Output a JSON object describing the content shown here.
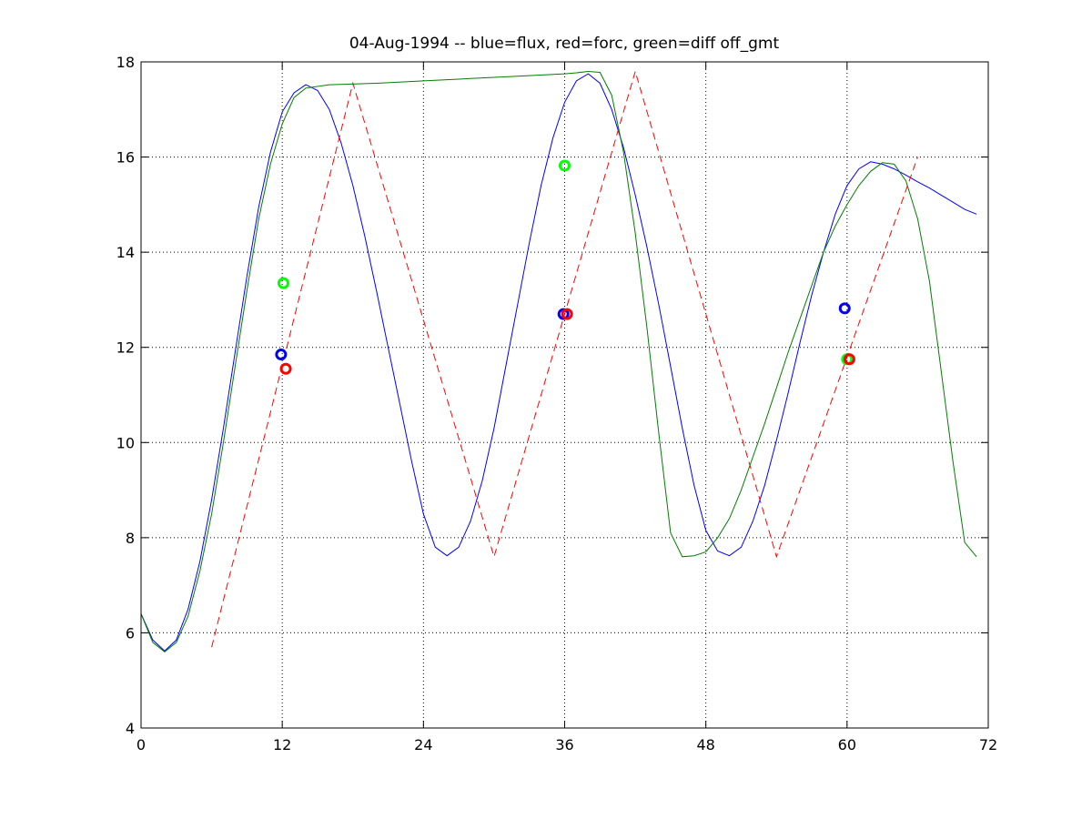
{
  "chart_data": {
    "type": "line",
    "title": "04-Aug-1994 -- blue=flux, red=forc, green=diff off_gmt",
    "xlabel": "",
    "ylabel": "",
    "xlim": [
      0,
      72
    ],
    "ylim": [
      4,
      18
    ],
    "xticks": [
      0,
      12,
      24,
      36,
      48,
      60,
      72
    ],
    "yticks": [
      4,
      6,
      8,
      10,
      12,
      14,
      16,
      18
    ],
    "grid": true,
    "colors": {
      "blue": "#0000ff",
      "red": "#ff0000",
      "green": "#007f00",
      "green_marker": "#00ff00"
    },
    "series": [
      {
        "color": "blue",
        "style": "solid",
        "x": [
          0,
          1,
          2,
          3,
          4,
          5,
          6,
          7,
          8,
          9,
          10,
          11,
          12,
          13,
          14,
          15,
          16,
          17,
          18,
          19,
          20,
          21,
          22,
          23,
          24,
          25,
          26,
          27,
          28,
          29,
          30,
          31,
          32,
          33,
          34,
          35,
          36,
          37,
          38,
          39,
          40,
          41,
          42,
          43,
          44,
          45,
          46,
          47,
          48,
          49,
          50,
          51,
          52,
          53,
          54,
          55,
          56,
          57,
          58,
          59,
          60,
          61,
          62,
          63,
          64,
          65,
          66,
          67,
          68,
          69,
          70,
          71
        ],
        "y": [
          6.4,
          5.85,
          5.62,
          5.85,
          6.5,
          7.5,
          8.8,
          10.3,
          11.9,
          13.5,
          14.95,
          16.1,
          16.95,
          17.35,
          17.52,
          17.4,
          17.0,
          16.3,
          15.4,
          14.35,
          13.2,
          12.0,
          10.8,
          9.6,
          8.5,
          7.8,
          7.62,
          7.8,
          8.35,
          9.2,
          10.3,
          11.6,
          12.9,
          14.2,
          15.4,
          16.4,
          17.15,
          17.6,
          17.75,
          17.55,
          17.0,
          16.2,
          15.2,
          14.1,
          12.9,
          11.6,
          10.3,
          9.1,
          8.15,
          7.72,
          7.62,
          7.8,
          8.35,
          9.1,
          10.05,
          11.05,
          12.1,
          13.1,
          14.0,
          14.8,
          15.4,
          15.75,
          15.9,
          15.85,
          15.75,
          15.62,
          15.48,
          15.35,
          15.2,
          15.05,
          14.9,
          14.8
        ]
      },
      {
        "color": "red",
        "style": "dashed",
        "x": [
          6,
          18,
          30,
          42,
          54,
          66
        ],
        "y": [
          5.7,
          17.55,
          7.6,
          17.8,
          7.6,
          16.0
        ]
      },
      {
        "color": "green",
        "style": "solid",
        "x": [
          0,
          1,
          2,
          3,
          4,
          5,
          6,
          7,
          8,
          9,
          10,
          11,
          12,
          13,
          14,
          16,
          20,
          24,
          28,
          32,
          36,
          37,
          38,
          39,
          40,
          41,
          42,
          43,
          44,
          45,
          46,
          47,
          48,
          49,
          50,
          51,
          52,
          53,
          54,
          55,
          56,
          57,
          58,
          59,
          60,
          61,
          62,
          63,
          64,
          65,
          66,
          67,
          68,
          69,
          70,
          71
        ],
        "y": [
          6.4,
          5.8,
          5.6,
          5.8,
          6.35,
          7.3,
          8.5,
          10.0,
          11.6,
          13.2,
          14.7,
          15.85,
          16.7,
          17.25,
          17.45,
          17.52,
          17.55,
          17.6,
          17.65,
          17.7,
          17.75,
          17.77,
          17.8,
          17.78,
          17.3,
          16.1,
          14.4,
          12.4,
          10.2,
          8.1,
          7.6,
          7.62,
          7.7,
          8.0,
          8.4,
          9.0,
          9.7,
          10.4,
          11.15,
          11.9,
          12.6,
          13.3,
          14.0,
          14.55,
          15.0,
          15.4,
          15.7,
          15.88,
          15.85,
          15.5,
          14.7,
          13.4,
          11.5,
          9.6,
          7.9,
          7.6
        ]
      }
    ],
    "markers": [
      {
        "x": 11.9,
        "y": 11.85,
        "color": "blue"
      },
      {
        "x": 12.1,
        "y": 13.35,
        "color": "green_marker"
      },
      {
        "x": 12.3,
        "y": 11.55,
        "color": "red"
      },
      {
        "x": 35.9,
        "y": 12.7,
        "color": "blue"
      },
      {
        "x": 36.0,
        "y": 15.82,
        "color": "green_marker"
      },
      {
        "x": 36.2,
        "y": 12.7,
        "color": "red"
      },
      {
        "x": 59.8,
        "y": 12.82,
        "color": "blue"
      },
      {
        "x": 60.0,
        "y": 11.75,
        "color": "green_marker"
      },
      {
        "x": 60.2,
        "y": 11.75,
        "color": "red"
      }
    ]
  }
}
